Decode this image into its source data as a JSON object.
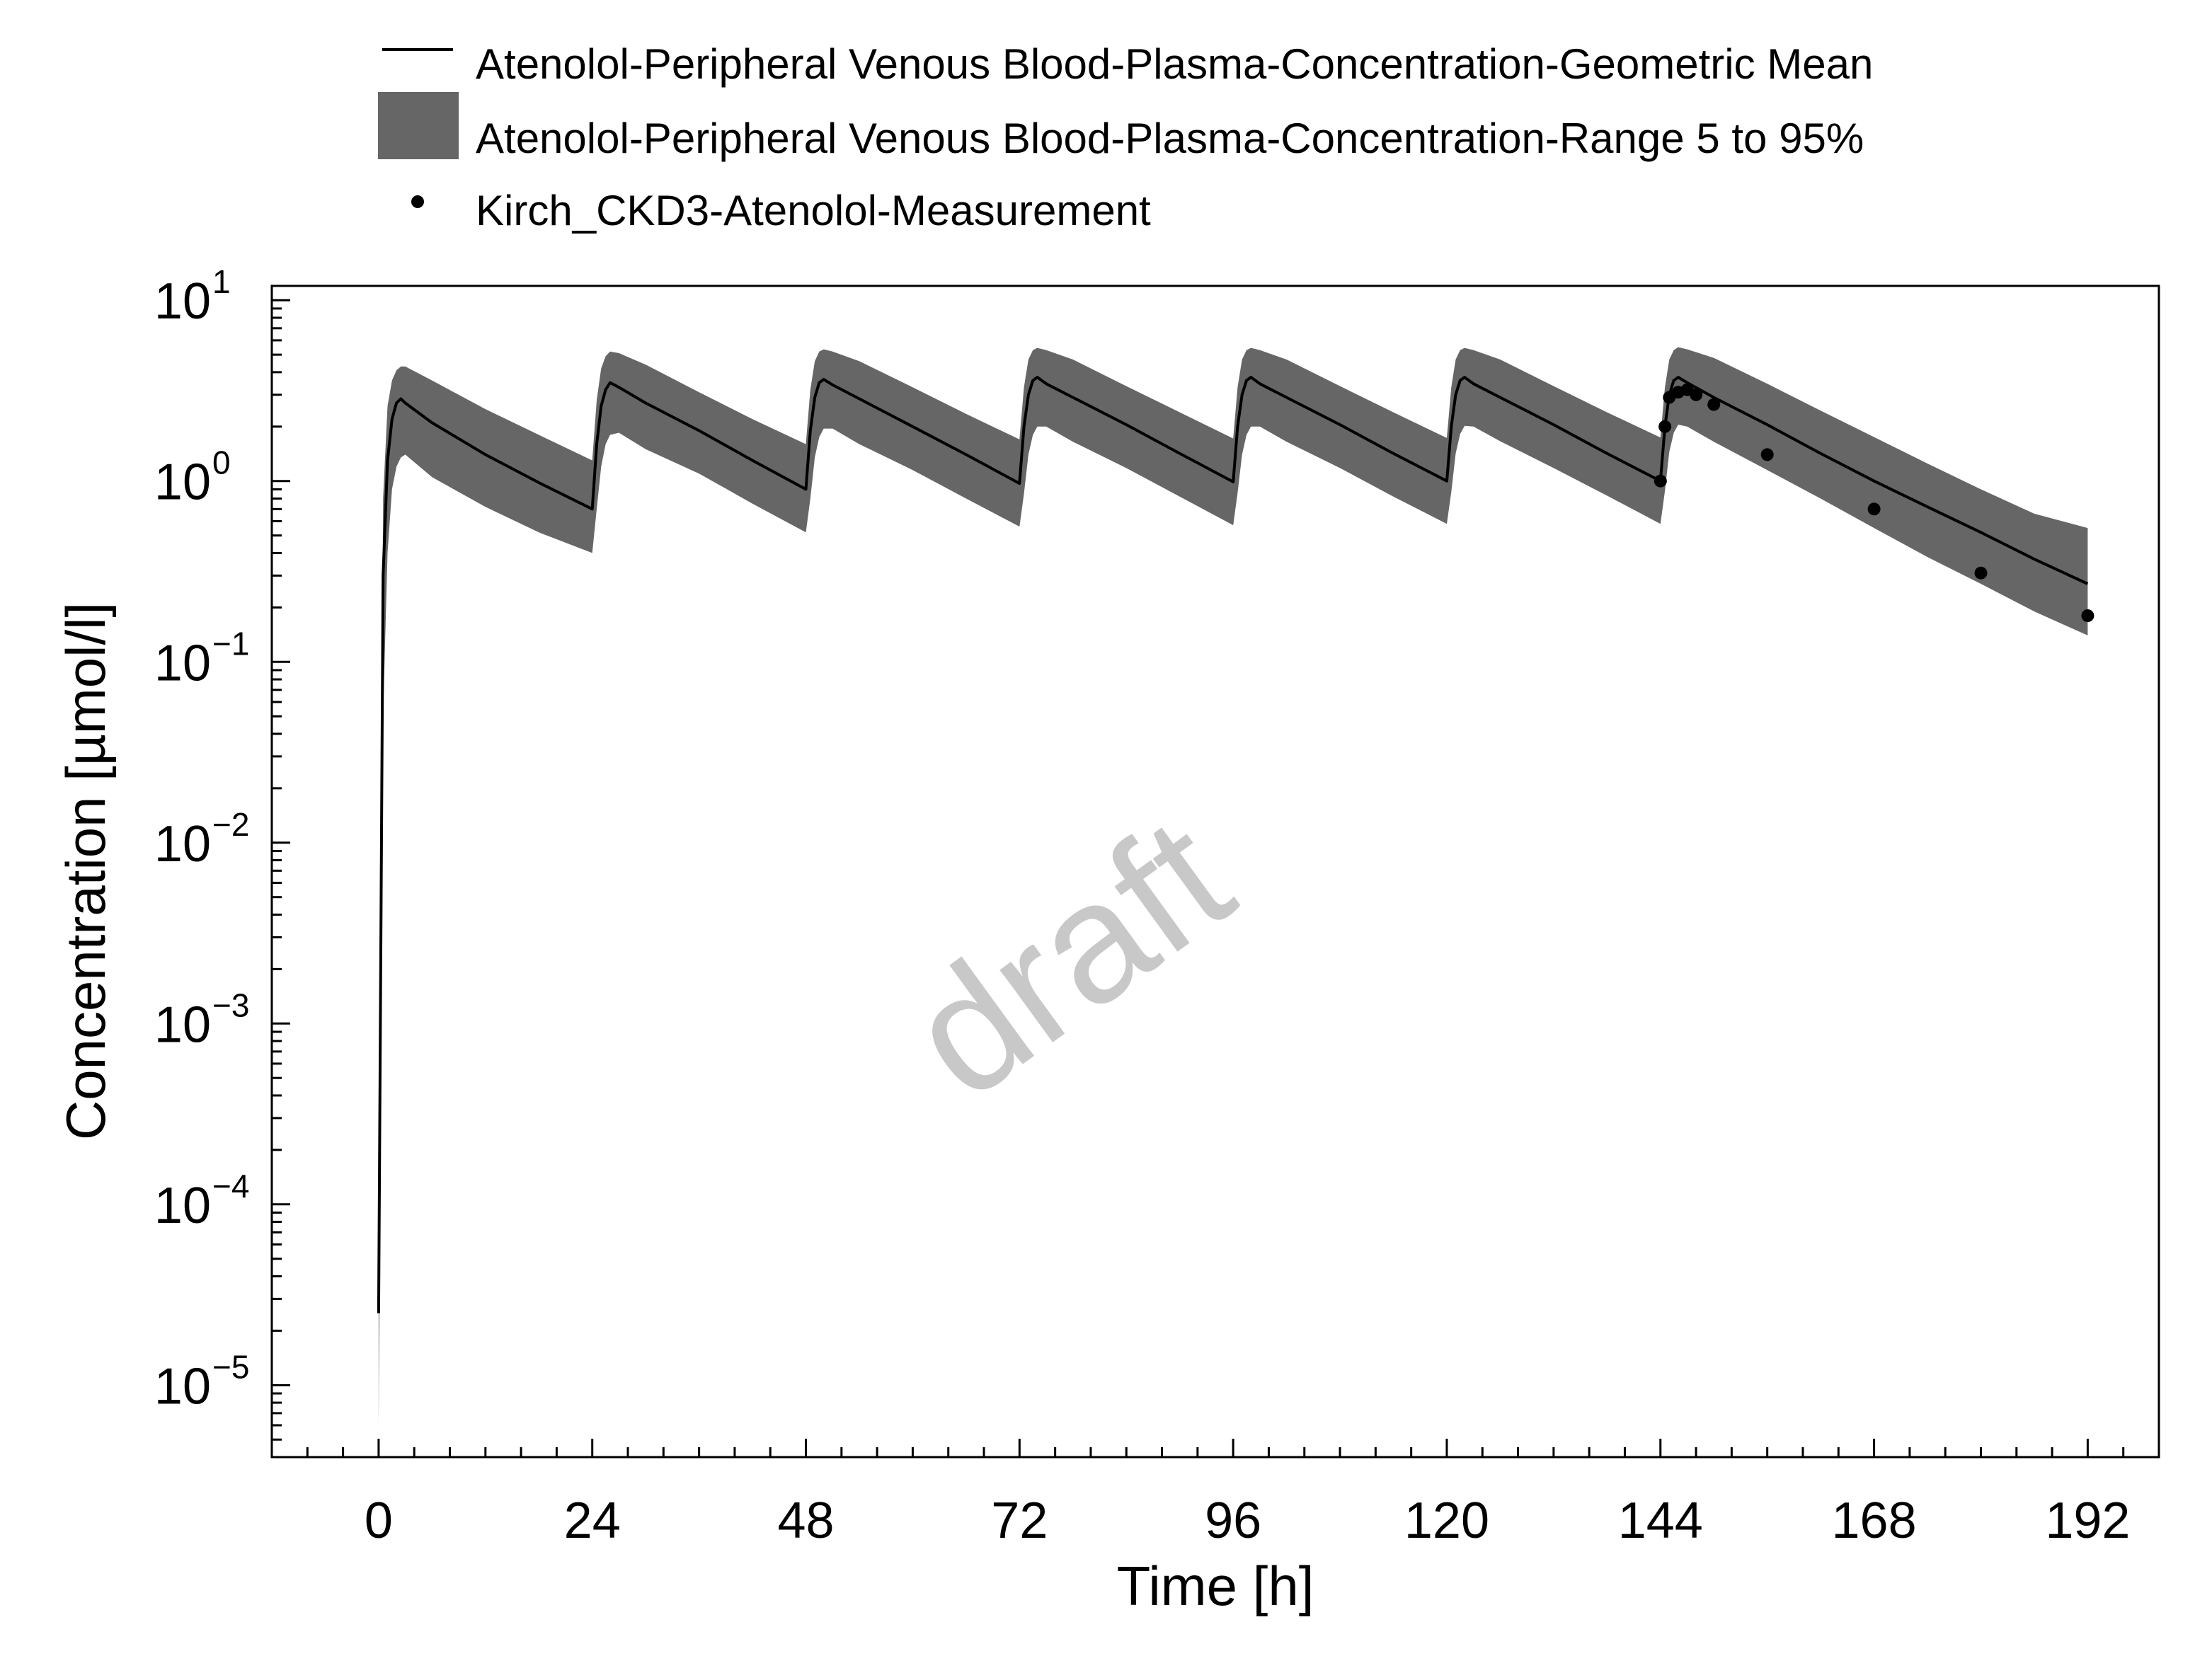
{
  "chart_data": {
    "type": "line",
    "xlabel": "Time [h]",
    "ylabel": "Concentration [µmol/l]",
    "xlim": [
      -12,
      200
    ],
    "ylim": [
      4e-06,
      12
    ],
    "y_scale": "log",
    "x_ticks": [
      0,
      24,
      48,
      72,
      96,
      120,
      144,
      168,
      192
    ],
    "y_ticks": [
      {
        "value": 1e-05,
        "base": "10",
        "exp": "−5"
      },
      {
        "value": 0.0001,
        "base": "10",
        "exp": "−4"
      },
      {
        "value": 0.001,
        "base": "10",
        "exp": "−3"
      },
      {
        "value": 0.01,
        "base": "10",
        "exp": "−2"
      },
      {
        "value": 0.1,
        "base": "10",
        "exp": "−1"
      },
      {
        "value": 1,
        "base": "10",
        "exp": "0"
      },
      {
        "value": 10,
        "base": "10",
        "exp": "1"
      }
    ],
    "legend_position": "top",
    "watermark": "draft",
    "colors": {
      "mean_line": "#000000",
      "range_band": "#666666",
      "measurement": "#000000",
      "watermark": "#c8c8c8"
    },
    "series": [
      {
        "name": "Atenolol-Peripheral Venous Blood-Plasma-Concentration-Geometric Mean",
        "kind": "line",
        "x": [
          0,
          0.5,
          1,
          1.5,
          2,
          2.5,
          3,
          6,
          12,
          18,
          24,
          24.5,
          25,
          25.5,
          26,
          27,
          30,
          36,
          42,
          48,
          48.5,
          49,
          49.5,
          50,
          51,
          54,
          60,
          66,
          72,
          72.5,
          73,
          73.5,
          74,
          75,
          78,
          84,
          90,
          96,
          96.5,
          97,
          97.5,
          98,
          99,
          102,
          108,
          114,
          120,
          120.5,
          121,
          121.5,
          122,
          123,
          126,
          132,
          138,
          144,
          144.5,
          145,
          145.5,
          146,
          147,
          150,
          156,
          162,
          168,
          174,
          180,
          186,
          192
        ],
        "y": [
          2.5e-05,
          0.3,
          1.3,
          2.2,
          2.7,
          2.85,
          2.7,
          2.1,
          1.4,
          0.98,
          0.7,
          1.6,
          2.6,
          3.2,
          3.5,
          3.3,
          2.7,
          1.9,
          1.3,
          0.9,
          1.9,
          2.9,
          3.5,
          3.65,
          3.4,
          2.85,
          2.0,
          1.4,
          0.97,
          2.0,
          3.0,
          3.6,
          3.75,
          3.45,
          2.9,
          2.05,
          1.42,
          0.99,
          2.0,
          3.0,
          3.6,
          3.75,
          3.45,
          2.9,
          2.05,
          1.42,
          1.0,
          2.0,
          3.0,
          3.6,
          3.75,
          3.45,
          2.9,
          2.05,
          1.42,
          1.0,
          2.0,
          3.0,
          3.6,
          3.75,
          3.5,
          2.9,
          2.05,
          1.42,
          1.0,
          0.72,
          0.52,
          0.37,
          0.27
        ]
      },
      {
        "name": "Atenolol-Peripheral Venous Blood-Plasma-Concentration-Range 5 to 95%",
        "kind": "band",
        "x": [
          0,
          0.5,
          1,
          1.5,
          2,
          2.5,
          3,
          6,
          12,
          18,
          24,
          24.5,
          25,
          25.5,
          26,
          27,
          30,
          36,
          42,
          48,
          48.5,
          49,
          49.5,
          50,
          51,
          54,
          60,
          66,
          72,
          72.5,
          73,
          73.5,
          74,
          75,
          78,
          84,
          90,
          96,
          96.5,
          97,
          97.5,
          98,
          99,
          102,
          108,
          114,
          120,
          120.5,
          121,
          121.5,
          122,
          123,
          126,
          132,
          138,
          144,
          144.5,
          145,
          145.5,
          146,
          147,
          150,
          156,
          162,
          168,
          174,
          180,
          186,
          192
        ],
        "lower": [
          6e-06,
          0.05,
          0.4,
          0.9,
          1.2,
          1.35,
          1.4,
          1.05,
          0.72,
          0.52,
          0.4,
          0.7,
          1.2,
          1.6,
          1.8,
          1.85,
          1.5,
          1.1,
          0.75,
          0.52,
          0.8,
          1.35,
          1.75,
          1.95,
          1.95,
          1.6,
          1.15,
          0.8,
          0.56,
          0.85,
          1.4,
          1.8,
          2.0,
          2.0,
          1.65,
          1.18,
          0.82,
          0.57,
          0.86,
          1.4,
          1.8,
          2.0,
          2.0,
          1.65,
          1.18,
          0.82,
          0.58,
          0.87,
          1.42,
          1.82,
          2.02,
          2.0,
          1.66,
          1.18,
          0.83,
          0.58,
          0.88,
          1.45,
          1.85,
          2.05,
          2.0,
          1.65,
          1.15,
          0.8,
          0.55,
          0.38,
          0.27,
          0.19,
          0.14
        ],
        "upper": [
          3e-05,
          0.8,
          2.6,
          3.6,
          4.1,
          4.3,
          4.3,
          3.6,
          2.5,
          1.8,
          1.3,
          2.8,
          4.2,
          4.9,
          5.2,
          5.1,
          4.4,
          3.1,
          2.2,
          1.6,
          3.2,
          4.6,
          5.2,
          5.35,
          5.2,
          4.6,
          3.3,
          2.35,
          1.7,
          3.3,
          4.7,
          5.3,
          5.45,
          5.3,
          4.7,
          3.35,
          2.4,
          1.72,
          3.3,
          4.7,
          5.3,
          5.45,
          5.3,
          4.7,
          3.35,
          2.4,
          1.73,
          3.3,
          4.7,
          5.3,
          5.45,
          5.3,
          4.7,
          3.35,
          2.4,
          1.74,
          3.3,
          4.7,
          5.3,
          5.5,
          5.35,
          4.8,
          3.45,
          2.45,
          1.75,
          1.25,
          0.9,
          0.66,
          0.55
        ]
      },
      {
        "name": "Kirch_CKD3-Atenolol-Measurement",
        "kind": "scatter",
        "x": [
          144,
          144.5,
          145,
          146,
          147,
          148,
          150,
          156,
          168,
          180,
          192
        ],
        "y": [
          1.0,
          2.0,
          2.9,
          3.1,
          3.2,
          3.0,
          2.65,
          1.4,
          0.7,
          0.31,
          0.18
        ]
      }
    ]
  }
}
